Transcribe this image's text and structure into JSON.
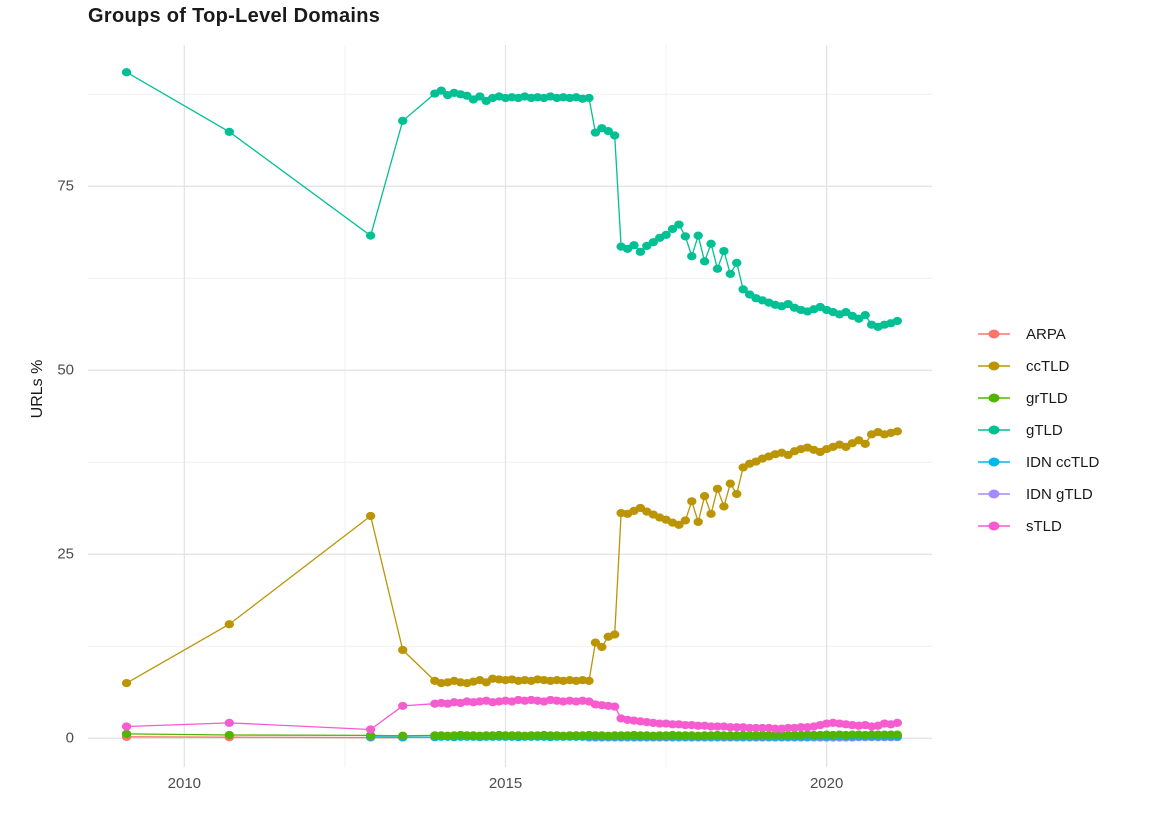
{
  "title": "Groups of Top-Level Domains",
  "axes": {
    "y_label": "URLs %",
    "y_ticks": [
      0,
      25,
      50,
      75
    ],
    "x_ticks": [
      2010,
      2015,
      2020
    ],
    "y_minor": [
      12.5,
      37.5,
      62.5,
      87.5
    ],
    "x_minor": [
      2012.5,
      2017.5
    ],
    "grid_major_color": "#e4e4e4",
    "grid_minor_color": "#f1f1f1",
    "tick_color": "#4d4d4d"
  },
  "legend": {
    "items": [
      {
        "label": "ARPA",
        "color": "#F8766D"
      },
      {
        "label": "ccTLD",
        "color": "#BB9506"
      },
      {
        "label": "grTLD",
        "color": "#53B400"
      },
      {
        "label": "gTLD",
        "color": "#00C094"
      },
      {
        "label": "IDN ccTLD",
        "color": "#00B6EB"
      },
      {
        "label": "IDN gTLD",
        "color": "#A58AFF"
      },
      {
        "label": "sTLD",
        "color": "#F65BD0"
      }
    ]
  },
  "chart_data": {
    "type": "line",
    "title": "Groups of Top-Level Domains",
    "xlabel": "",
    "ylabel": "URLs %",
    "xlim": [
      2008.5,
      2021.64
    ],
    "ylim": [
      -3.9,
      94.2
    ],
    "grid": true,
    "legend_position": "right",
    "marker": "point",
    "draw_order": [
      "ARPA",
      "IDN gTLD",
      "IDN ccTLD",
      "grTLD",
      "gTLD",
      "ccTLD",
      "sTLD"
    ],
    "series": [
      {
        "name": "ARPA",
        "color": "#F8766D",
        "x": [
          2009.1,
          2010.7,
          2012.9,
          2013.4
        ],
        "y": [
          0.2,
          0.15,
          0.1,
          0.1
        ]
      },
      {
        "name": "ccTLD",
        "color": "#BB9506",
        "x": [
          2009.1,
          2010.7,
          2012.9,
          2013.4,
          2013.9,
          2014,
          2014.1,
          2014.2,
          2014.3,
          2014.4,
          2014.5,
          2014.6,
          2014.7,
          2014.8,
          2014.9,
          2015,
          2015.1,
          2015.2,
          2015.3,
          2015.4,
          2015.5,
          2015.6,
          2015.7,
          2015.8,
          2015.9,
          2016,
          2016.1,
          2016.2,
          2016.3,
          2016.4,
          2016.5,
          2016.6,
          2016.7,
          2016.8,
          2016.9,
          2017,
          2017.1,
          2017.2,
          2017.3,
          2017.4,
          2017.5,
          2017.6,
          2017.7,
          2017.8,
          2017.9,
          2018,
          2018.1,
          2018.2,
          2018.3,
          2018.4,
          2018.5,
          2018.6,
          2018.7,
          2018.8,
          2018.9,
          2019,
          2019.1,
          2019.2,
          2019.3,
          2019.4,
          2019.5,
          2019.6,
          2019.7,
          2019.8,
          2019.9,
          2020,
          2020.1,
          2020.2,
          2020.3,
          2020.4,
          2020.5,
          2020.6,
          2020.7,
          2020.8,
          2020.9,
          2021,
          2021.1
        ],
        "y": [
          7.5,
          15.5,
          30.2,
          12.0,
          7.8,
          7.5,
          7.6,
          7.8,
          7.6,
          7.5,
          7.7,
          7.9,
          7.6,
          8.1,
          8.0,
          7.9,
          8.0,
          7.8,
          7.9,
          7.8,
          8.0,
          7.9,
          7.8,
          7.9,
          7.8,
          7.9,
          7.8,
          7.9,
          7.8,
          13.0,
          12.4,
          13.8,
          14.1,
          30.6,
          30.5,
          30.9,
          31.3,
          30.8,
          30.4,
          30.0,
          29.7,
          29.3,
          29.0,
          29.6,
          32.2,
          29.4,
          32.9,
          30.5,
          33.9,
          31.5,
          34.6,
          33.2,
          36.8,
          37.3,
          37.6,
          38.0,
          38.3,
          38.6,
          38.8,
          38.5,
          39.0,
          39.3,
          39.5,
          39.2,
          38.9,
          39.3,
          39.6,
          39.9,
          39.6,
          40.1,
          40.5,
          40.0,
          41.3,
          41.6,
          41.3,
          41.5,
          41.7
        ]
      },
      {
        "name": "grTLD",
        "color": "#53B400",
        "x": [
          2009.1,
          2010.7,
          2012.9,
          2013.4,
          2013.9,
          2014,
          2014.1,
          2014.2,
          2014.3,
          2014.4,
          2014.5,
          2014.6,
          2014.7,
          2014.8,
          2014.9,
          2015,
          2015.1,
          2015.2,
          2015.3,
          2015.4,
          2015.5,
          2015.6,
          2015.7,
          2015.8,
          2015.9,
          2016,
          2016.1,
          2016.2,
          2016.3,
          2016.4,
          2016.5,
          2016.6,
          2016.7,
          2016.8,
          2016.9,
          2017,
          2017.1,
          2017.2,
          2017.3,
          2017.4,
          2017.5,
          2017.6,
          2017.7,
          2017.8,
          2017.9,
          2018,
          2018.1,
          2018.2,
          2018.3,
          2018.4,
          2018.5,
          2018.6,
          2018.7,
          2018.8,
          2018.9,
          2019,
          2019.1,
          2019.2,
          2019.3,
          2019.4,
          2019.5,
          2019.6,
          2019.7,
          2019.8,
          2019.9,
          2020,
          2020.1,
          2020.2,
          2020.3,
          2020.4,
          2020.5,
          2020.6,
          2020.7,
          2020.8,
          2020.9,
          2021,
          2021.1
        ],
        "y": [
          0.6,
          0.45,
          0.4,
          0.35,
          0.4,
          0.4,
          0.35,
          0.4,
          0.45,
          0.4,
          0.4,
          0.35,
          0.4,
          0.4,
          0.45,
          0.4,
          0.4,
          0.4,
          0.35,
          0.4,
          0.4,
          0.45,
          0.4,
          0.4,
          0.35,
          0.4,
          0.4,
          0.4,
          0.45,
          0.4,
          0.4,
          0.35,
          0.4,
          0.4,
          0.4,
          0.45,
          0.4,
          0.4,
          0.35,
          0.4,
          0.4,
          0.45,
          0.4,
          0.4,
          0.4,
          0.35,
          0.4,
          0.4,
          0.45,
          0.4,
          0.4,
          0.4,
          0.45,
          0.4,
          0.4,
          0.45,
          0.4,
          0.45,
          0.45,
          0.4,
          0.45,
          0.45,
          0.5,
          0.45,
          0.45,
          0.5,
          0.45,
          0.5,
          0.45,
          0.5,
          0.5,
          0.45,
          0.5,
          0.5,
          0.5,
          0.5,
          0.5
        ]
      },
      {
        "name": "gTLD",
        "color": "#00C094",
        "x": [
          2009.1,
          2010.7,
          2012.9,
          2013.4,
          2013.9,
          2014,
          2014.1,
          2014.2,
          2014.3,
          2014.4,
          2014.5,
          2014.6,
          2014.7,
          2014.8,
          2014.9,
          2015,
          2015.1,
          2015.2,
          2015.3,
          2015.4,
          2015.5,
          2015.6,
          2015.7,
          2015.8,
          2015.9,
          2016,
          2016.1,
          2016.2,
          2016.3,
          2016.4,
          2016.5,
          2016.6,
          2016.7,
          2016.8,
          2016.9,
          2017,
          2017.1,
          2017.2,
          2017.3,
          2017.4,
          2017.5,
          2017.6,
          2017.7,
          2017.8,
          2017.9,
          2018,
          2018.1,
          2018.2,
          2018.3,
          2018.4,
          2018.5,
          2018.6,
          2018.7,
          2018.8,
          2018.9,
          2019,
          2019.1,
          2019.2,
          2019.3,
          2019.4,
          2019.5,
          2019.6,
          2019.7,
          2019.8,
          2019.9,
          2020,
          2020.1,
          2020.2,
          2020.3,
          2020.4,
          2020.5,
          2020.6,
          2020.7,
          2020.8,
          2020.9,
          2021,
          2021.1
        ],
        "y": [
          90.5,
          82.4,
          68.3,
          83.9,
          87.6,
          88.0,
          87.4,
          87.7,
          87.5,
          87.3,
          86.8,
          87.2,
          86.6,
          87.0,
          87.2,
          87.0,
          87.1,
          87.0,
          87.2,
          87.0,
          87.1,
          87.0,
          87.2,
          87.0,
          87.1,
          87.0,
          87.1,
          86.9,
          87.0,
          82.3,
          82.9,
          82.5,
          81.9,
          66.8,
          66.5,
          67.0,
          66.1,
          66.9,
          67.4,
          68.0,
          68.4,
          69.2,
          69.8,
          68.2,
          65.5,
          68.3,
          64.8,
          67.2,
          63.8,
          66.2,
          63.1,
          64.6,
          61.0,
          60.3,
          59.8,
          59.5,
          59.2,
          58.9,
          58.7,
          59.0,
          58.5,
          58.2,
          58.0,
          58.3,
          58.6,
          58.2,
          57.9,
          57.6,
          57.9,
          57.4,
          57.0,
          57.5,
          56.2,
          55.9,
          56.2,
          56.4,
          56.7
        ]
      },
      {
        "name": "IDN ccTLD",
        "color": "#00B6EB",
        "x": [
          2012.9,
          2013.4,
          2013.9,
          2014,
          2014.1,
          2014.2,
          2014.3,
          2014.4,
          2014.5,
          2014.6,
          2014.7,
          2014.8,
          2014.9,
          2015,
          2015.1,
          2015.2,
          2015.3,
          2015.4,
          2015.5,
          2015.6,
          2015.7,
          2015.8,
          2015.9,
          2016,
          2016.1,
          2016.2,
          2016.3,
          2016.4,
          2016.5,
          2016.6,
          2016.7,
          2016.8,
          2016.9,
          2017,
          2017.1,
          2017.2,
          2017.3,
          2017.4,
          2017.5,
          2017.6,
          2017.7,
          2017.8,
          2017.9,
          2018,
          2018.1,
          2018.2,
          2018.3,
          2018.4,
          2018.5,
          2018.6,
          2018.7,
          2018.8,
          2018.9,
          2019,
          2019.1,
          2019.2,
          2019.3,
          2019.4,
          2019.5,
          2019.6,
          2019.7,
          2019.8,
          2019.9,
          2020,
          2020.1,
          2020.2,
          2020.3,
          2020.4,
          2020.5,
          2020.6,
          2020.7,
          2020.8,
          2020.9,
          2021,
          2021.1
        ],
        "y": [
          0.2,
          0.15,
          0.15,
          0.2,
          0.2,
          0.15,
          0.2,
          0.2,
          0.2,
          0.15,
          0.2,
          0.2,
          0.2,
          0.2,
          0.2,
          0.15,
          0.2,
          0.2,
          0.2,
          0.2,
          0.15,
          0.2,
          0.2,
          0.2,
          0.2,
          0.2,
          0.2,
          0.2,
          0.2,
          0.2,
          0.2,
          0.2,
          0.2,
          0.2,
          0.2,
          0.2,
          0.2,
          0.2,
          0.2,
          0.2,
          0.2,
          0.2,
          0.2,
          0.2,
          0.2,
          0.2,
          0.2,
          0.2,
          0.2,
          0.2,
          0.2,
          0.2,
          0.2,
          0.2,
          0.2,
          0.2,
          0.2,
          0.2,
          0.2,
          0.2,
          0.2,
          0.25,
          0.25,
          0.2,
          0.25,
          0.25,
          0.25,
          0.25,
          0.25,
          0.25,
          0.25,
          0.25,
          0.25,
          0.25,
          0.25
        ]
      },
      {
        "name": "IDN gTLD",
        "color": "#A58AFF",
        "x": [
          2016.3,
          2016.4,
          2016.5,
          2016.6,
          2016.7,
          2016.8,
          2016.9,
          2017,
          2017.1,
          2017.2,
          2017.3,
          2017.4,
          2017.5,
          2017.6,
          2017.7,
          2017.8,
          2017.9,
          2018,
          2018.1,
          2018.2,
          2018.3,
          2018.4,
          2018.5,
          2018.6,
          2018.7,
          2018.8,
          2018.9,
          2019,
          2019.1,
          2019.2,
          2019.3,
          2019.4,
          2019.5,
          2019.6,
          2019.7,
          2019.8,
          2019.9,
          2020,
          2020.1,
          2020.2,
          2020.3,
          2020.4,
          2020.5,
          2020.6,
          2020.7,
          2020.8,
          2020.9,
          2021,
          2021.1
        ],
        "y": [
          0.1,
          0.1,
          0.1,
          0.1,
          0.1,
          0.1,
          0.1,
          0.1,
          0.1,
          0.1,
          0.1,
          0.1,
          0.1,
          0.1,
          0.1,
          0.1,
          0.1,
          0.1,
          0.1,
          0.1,
          0.1,
          0.1,
          0.1,
          0.1,
          0.1,
          0.1,
          0.1,
          0.1,
          0.1,
          0.1,
          0.1,
          0.1,
          0.1,
          0.1,
          0.1,
          0.1,
          0.1,
          0.1,
          0.1,
          0.1,
          0.1,
          0.1,
          0.15,
          0.15,
          0.15,
          0.15,
          0.15,
          0.15,
          0.15
        ]
      },
      {
        "name": "sTLD",
        "color": "#F65BD0",
        "x": [
          2009.1,
          2010.7,
          2012.9,
          2013.4,
          2013.9,
          2014,
          2014.1,
          2014.2,
          2014.3,
          2014.4,
          2014.5,
          2014.6,
          2014.7,
          2014.8,
          2014.9,
          2015,
          2015.1,
          2015.2,
          2015.3,
          2015.4,
          2015.5,
          2015.6,
          2015.7,
          2015.8,
          2015.9,
          2016,
          2016.1,
          2016.2,
          2016.3,
          2016.4,
          2016.5,
          2016.6,
          2016.7,
          2016.8,
          2016.9,
          2017,
          2017.1,
          2017.2,
          2017.3,
          2017.4,
          2017.5,
          2017.6,
          2017.7,
          2017.8,
          2017.9,
          2018,
          2018.1,
          2018.2,
          2018.3,
          2018.4,
          2018.5,
          2018.6,
          2018.7,
          2018.8,
          2018.9,
          2019,
          2019.1,
          2019.2,
          2019.3,
          2019.4,
          2019.5,
          2019.6,
          2019.7,
          2019.8,
          2019.9,
          2020,
          2020.1,
          2020.2,
          2020.3,
          2020.4,
          2020.5,
          2020.6,
          2020.7,
          2020.8,
          2020.9,
          2021,
          2021.1
        ],
        "y": [
          1.6,
          2.1,
          1.2,
          4.4,
          4.7,
          4.8,
          4.7,
          4.9,
          4.8,
          5.0,
          4.9,
          5.0,
          5.1,
          4.9,
          5.0,
          5.1,
          5.0,
          5.2,
          5.1,
          5.2,
          5.1,
          5.0,
          5.2,
          5.1,
          5.0,
          5.1,
          5.0,
          5.1,
          5.0,
          4.6,
          4.5,
          4.4,
          4.3,
          2.7,
          2.5,
          2.4,
          2.3,
          2.2,
          2.1,
          2.0,
          2.0,
          1.9,
          1.9,
          1.8,
          1.8,
          1.7,
          1.7,
          1.6,
          1.6,
          1.6,
          1.5,
          1.5,
          1.5,
          1.4,
          1.4,
          1.4,
          1.4,
          1.3,
          1.3,
          1.4,
          1.4,
          1.5,
          1.5,
          1.6,
          1.8,
          2.0,
          2.1,
          2.0,
          1.9,
          1.8,
          1.7,
          1.8,
          1.6,
          1.7,
          2.0,
          1.9,
          2.1
        ]
      }
    ]
  }
}
